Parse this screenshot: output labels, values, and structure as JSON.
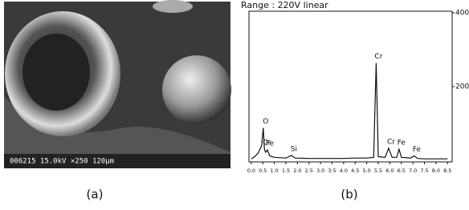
{
  "panel_a": {
    "caption": "(a)",
    "info_text": "006215 15.0kV ×250 120μm"
  },
  "chart_data": {
    "type": "line",
    "title": "Range : 220V  linear",
    "caption": "(b)",
    "x": [
      0,
      0.15,
      0.3,
      0.45,
      0.52,
      0.57,
      0.62,
      0.7,
      0.8,
      1.0,
      1.5,
      1.74,
      1.9,
      2.5,
      3.0,
      3.5,
      4.0,
      4.5,
      5.0,
      5.3,
      5.41,
      5.5,
      5.8,
      5.95,
      6.1,
      6.3,
      6.4,
      6.5,
      6.9,
      7.06,
      7.2,
      7.5,
      8.0,
      8.5
    ],
    "values": [
      4,
      10,
      20,
      40,
      88,
      30,
      22,
      28,
      12,
      8,
      6,
      13,
      6,
      5,
      5,
      5,
      5,
      6,
      6,
      8,
      264,
      10,
      8,
      33,
      8,
      8,
      30,
      8,
      6,
      12,
      5,
      4,
      4,
      4
    ],
    "color": "#111111",
    "annotations": [
      {
        "text": "O",
        "x": 0.52
      },
      {
        "text": "Cr",
        "x": 0.57
      },
      {
        "text": "Fe",
        "x": 0.7
      },
      {
        "text": "Si",
        "x": 1.74
      },
      {
        "text": "Cr",
        "x": 5.41
      },
      {
        "text": "Cr",
        "x": 5.95
      },
      {
        "text": "Fe",
        "x": 6.4
      },
      {
        "text": "Fe",
        "x": 7.06
      }
    ],
    "xlim": [
      -0.1,
      8.7
    ],
    "ylim": [
      0,
      400
    ],
    "xticks": [
      {
        "value": 0,
        "label": "0.0"
      },
      {
        "value": 0.5,
        "label": "0.5"
      },
      {
        "value": 1,
        "label": "1.0"
      },
      {
        "value": 1.5,
        "label": "1.5"
      },
      {
        "value": 2,
        "label": "2.0"
      },
      {
        "value": 2.5,
        "label": "2.5"
      },
      {
        "value": 3,
        "label": "3.0"
      },
      {
        "value": 3.5,
        "label": "3.5"
      },
      {
        "value": 4,
        "label": "4.0"
      },
      {
        "value": 4.5,
        "label": "4.5"
      },
      {
        "value": 5,
        "label": "5.0"
      },
      {
        "value": 5.5,
        "label": "5.5"
      },
      {
        "value": 6,
        "label": "6.0"
      },
      {
        "value": 6.5,
        "label": "6.5"
      },
      {
        "value": 7,
        "label": "7.0"
      },
      {
        "value": 7.5,
        "label": "7.5"
      },
      {
        "value": 8,
        "label": "8.0"
      },
      {
        "value": 8.5,
        "label": "8.5"
      }
    ],
    "yticks": [
      200,
      400
    ]
  }
}
